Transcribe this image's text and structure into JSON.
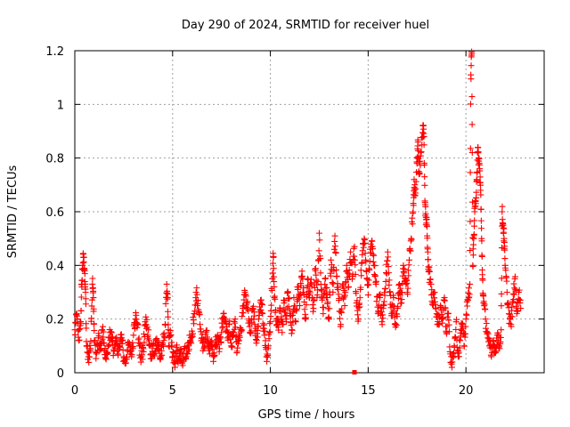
{
  "chart_data": {
    "type": "scatter",
    "title": "Day 290 of 2024, SRMTID for receiver huel",
    "xlabel": "GPS time / hours",
    "ylabel": "SRMTID / TECUs",
    "xlim": [
      0,
      24
    ],
    "ylim": [
      0,
      1.2
    ],
    "x_ticks": [
      "0",
      "5",
      "10",
      "15",
      "20"
    ],
    "y_ticks": [
      "0",
      "0.2",
      "0.4",
      "0.6",
      "0.8",
      "1",
      "1.2"
    ],
    "grid": true,
    "marker": "+",
    "series_color": "#ff0000",
    "series": [
      {
        "name": "SRMTID",
        "points": [
          [
            0.0,
            0.16
          ],
          [
            0.1,
            0.22
          ],
          [
            0.2,
            0.12
          ],
          [
            0.3,
            0.19
          ],
          [
            0.35,
            0.33
          ],
          [
            0.4,
            0.4
          ],
          [
            0.45,
            0.43
          ],
          [
            0.5,
            0.38
          ],
          [
            0.55,
            0.3
          ],
          [
            0.6,
            0.1
          ],
          [
            0.7,
            0.06
          ],
          [
            0.8,
            0.09
          ],
          [
            0.9,
            0.33
          ],
          [
            0.95,
            0.28
          ],
          [
            1.0,
            0.12
          ],
          [
            1.1,
            0.07
          ],
          [
            1.2,
            0.13
          ],
          [
            1.3,
            0.09
          ],
          [
            1.4,
            0.16
          ],
          [
            1.5,
            0.11
          ],
          [
            1.6,
            0.05
          ],
          [
            1.7,
            0.1
          ],
          [
            1.8,
            0.15
          ],
          [
            1.9,
            0.12
          ],
          [
            2.0,
            0.08
          ],
          [
            2.1,
            0.12
          ],
          [
            2.2,
            0.07
          ],
          [
            2.3,
            0.1
          ],
          [
            2.4,
            0.13
          ],
          [
            2.5,
            0.06
          ],
          [
            2.6,
            0.05
          ],
          [
            2.7,
            0.08
          ],
          [
            2.8,
            0.11
          ],
          [
            2.9,
            0.06
          ],
          [
            3.0,
            0.14
          ],
          [
            3.1,
            0.2
          ],
          [
            3.2,
            0.18
          ],
          [
            3.3,
            0.1
          ],
          [
            3.4,
            0.06
          ],
          [
            3.5,
            0.09
          ],
          [
            3.6,
            0.19
          ],
          [
            3.7,
            0.17
          ],
          [
            3.8,
            0.12
          ],
          [
            3.9,
            0.07
          ],
          [
            4.0,
            0.1
          ],
          [
            4.1,
            0.08
          ],
          [
            4.2,
            0.12
          ],
          [
            4.3,
            0.09
          ],
          [
            4.4,
            0.06
          ],
          [
            4.5,
            0.11
          ],
          [
            4.6,
            0.13
          ],
          [
            4.7,
            0.33
          ],
          [
            4.75,
            0.28
          ],
          [
            4.8,
            0.1
          ],
          [
            4.9,
            0.14
          ],
          [
            5.0,
            0.06
          ],
          [
            5.1,
            0.04
          ],
          [
            5.2,
            0.08
          ],
          [
            5.3,
            0.05
          ],
          [
            5.4,
            0.07
          ],
          [
            5.5,
            0.04
          ],
          [
            5.6,
            0.09
          ],
          [
            5.7,
            0.06
          ],
          [
            5.8,
            0.1
          ],
          [
            5.9,
            0.12
          ],
          [
            6.0,
            0.14
          ],
          [
            6.1,
            0.22
          ],
          [
            6.2,
            0.3
          ],
          [
            6.3,
            0.27
          ],
          [
            6.4,
            0.18
          ],
          [
            6.5,
            0.13
          ],
          [
            6.6,
            0.09
          ],
          [
            6.7,
            0.15
          ],
          [
            6.8,
            0.11
          ],
          [
            6.9,
            0.07
          ],
          [
            7.0,
            0.12
          ],
          [
            7.1,
            0.06
          ],
          [
            7.2,
            0.1
          ],
          [
            7.3,
            0.14
          ],
          [
            7.4,
            0.09
          ],
          [
            7.5,
            0.15
          ],
          [
            7.6,
            0.22
          ],
          [
            7.7,
            0.19
          ],
          [
            7.8,
            0.13
          ],
          [
            7.9,
            0.18
          ],
          [
            8.0,
            0.1
          ],
          [
            8.1,
            0.14
          ],
          [
            8.2,
            0.2
          ],
          [
            8.3,
            0.08
          ],
          [
            8.4,
            0.12
          ],
          [
            8.5,
            0.16
          ],
          [
            8.6,
            0.24
          ],
          [
            8.7,
            0.3
          ],
          [
            8.8,
            0.26
          ],
          [
            8.9,
            0.2
          ],
          [
            9.0,
            0.15
          ],
          [
            9.1,
            0.24
          ],
          [
            9.2,
            0.18
          ],
          [
            9.3,
            0.12
          ],
          [
            9.4,
            0.2
          ],
          [
            9.5,
            0.27
          ],
          [
            9.6,
            0.22
          ],
          [
            9.7,
            0.14
          ],
          [
            9.8,
            0.06
          ],
          [
            9.9,
            0.1
          ],
          [
            10.0,
            0.19
          ],
          [
            10.1,
            0.35
          ],
          [
            10.15,
            0.43
          ],
          [
            10.2,
            0.28
          ],
          [
            10.3,
            0.2
          ],
          [
            10.4,
            0.17
          ],
          [
            10.5,
            0.24
          ],
          [
            10.6,
            0.15
          ],
          [
            10.7,
            0.26
          ],
          [
            10.8,
            0.2
          ],
          [
            10.9,
            0.3
          ],
          [
            11.0,
            0.22
          ],
          [
            11.1,
            0.16
          ],
          [
            11.2,
            0.28
          ],
          [
            11.3,
            0.19
          ],
          [
            11.4,
            0.31
          ],
          [
            11.5,
            0.25
          ],
          [
            11.6,
            0.36
          ],
          [
            11.7,
            0.3
          ],
          [
            11.8,
            0.2
          ],
          [
            11.9,
            0.35
          ],
          [
            12.0,
            0.28
          ],
          [
            12.1,
            0.33
          ],
          [
            12.2,
            0.24
          ],
          [
            12.3,
            0.38
          ],
          [
            12.4,
            0.29
          ],
          [
            12.5,
            0.52
          ],
          [
            12.6,
            0.31
          ],
          [
            12.7,
            0.22
          ],
          [
            12.8,
            0.35
          ],
          [
            12.9,
            0.28
          ],
          [
            13.0,
            0.2
          ],
          [
            13.1,
            0.42
          ],
          [
            13.2,
            0.3
          ],
          [
            13.3,
            0.51
          ],
          [
            13.4,
            0.36
          ],
          [
            13.5,
            0.27
          ],
          [
            13.6,
            0.18
          ],
          [
            13.7,
            0.33
          ],
          [
            13.8,
            0.25
          ],
          [
            13.9,
            0.4
          ],
          [
            14.0,
            0.32
          ],
          [
            14.1,
            0.45
          ],
          [
            14.2,
            0.36
          ],
          [
            14.3,
            0.47
          ],
          [
            14.4,
            0.26
          ],
          [
            14.5,
            0.2
          ],
          [
            14.6,
            0.31
          ],
          [
            14.7,
            0.44
          ],
          [
            14.8,
            0.5
          ],
          [
            14.9,
            0.38
          ],
          [
            15.0,
            0.29
          ],
          [
            15.1,
            0.46
          ],
          [
            15.2,
            0.49
          ],
          [
            15.3,
            0.4
          ],
          [
            15.4,
            0.33
          ],
          [
            15.5,
            0.22
          ],
          [
            15.6,
            0.28
          ],
          [
            15.7,
            0.19
          ],
          [
            15.8,
            0.25
          ],
          [
            15.9,
            0.34
          ],
          [
            16.0,
            0.45
          ],
          [
            16.1,
            0.3
          ],
          [
            16.2,
            0.22
          ],
          [
            16.3,
            0.28
          ],
          [
            16.4,
            0.17
          ],
          [
            16.5,
            0.24
          ],
          [
            16.6,
            0.33
          ],
          [
            16.7,
            0.26
          ],
          [
            16.8,
            0.4
          ],
          [
            16.9,
            0.35
          ],
          [
            17.0,
            0.3
          ],
          [
            17.1,
            0.42
          ],
          [
            17.2,
            0.5
          ],
          [
            17.3,
            0.6
          ],
          [
            17.35,
            0.72
          ],
          [
            17.4,
            0.66
          ],
          [
            17.5,
            0.78
          ],
          [
            17.55,
            0.86
          ],
          [
            17.6,
            0.74
          ],
          [
            17.7,
            0.82
          ],
          [
            17.8,
            0.92
          ],
          [
            17.85,
            0.88
          ],
          [
            17.9,
            0.64
          ],
          [
            17.95,
            0.58
          ],
          [
            18.0,
            0.55
          ],
          [
            18.05,
            0.45
          ],
          [
            18.1,
            0.38
          ],
          [
            18.2,
            0.33
          ],
          [
            18.3,
            0.26
          ],
          [
            18.4,
            0.3
          ],
          [
            18.5,
            0.22
          ],
          [
            18.6,
            0.18
          ],
          [
            18.7,
            0.25
          ],
          [
            18.8,
            0.2
          ],
          [
            18.9,
            0.28
          ],
          [
            19.0,
            0.15
          ],
          [
            19.1,
            0.22
          ],
          [
            19.2,
            0.07
          ],
          [
            19.3,
            0.04
          ],
          [
            19.4,
            0.1
          ],
          [
            19.5,
            0.19
          ],
          [
            19.6,
            0.06
          ],
          [
            19.7,
            0.12
          ],
          [
            19.8,
            0.18
          ],
          [
            19.9,
            0.1
          ],
          [
            20.0,
            0.2
          ],
          [
            20.1,
            0.27
          ],
          [
            20.2,
            0.33
          ],
          [
            20.25,
            1.11
          ],
          [
            20.3,
            1.19
          ],
          [
            20.35,
            0.4
          ],
          [
            20.4,
            0.5
          ],
          [
            20.45,
            0.6
          ],
          [
            20.5,
            0.64
          ],
          [
            20.55,
            0.72
          ],
          [
            20.6,
            0.82
          ],
          [
            20.65,
            0.8
          ],
          [
            20.7,
            0.76
          ],
          [
            20.75,
            0.68
          ],
          [
            20.8,
            0.5
          ],
          [
            20.85,
            0.35
          ],
          [
            20.9,
            0.26
          ],
          [
            21.0,
            0.2
          ],
          [
            21.1,
            0.15
          ],
          [
            21.2,
            0.1
          ],
          [
            21.3,
            0.06
          ],
          [
            21.4,
            0.12
          ],
          [
            21.5,
            0.08
          ],
          [
            21.6,
            0.14
          ],
          [
            21.7,
            0.1
          ],
          [
            21.8,
            0.16
          ],
          [
            21.85,
            0.6
          ],
          [
            21.9,
            0.55
          ],
          [
            21.95,
            0.5
          ],
          [
            22.0,
            0.4
          ],
          [
            22.1,
            0.3
          ],
          [
            22.2,
            0.22
          ],
          [
            22.3,
            0.18
          ],
          [
            22.4,
            0.26
          ],
          [
            22.5,
            0.35
          ],
          [
            22.6,
            0.22
          ],
          [
            22.7,
            0.3
          ],
          [
            22.8,
            0.24
          ]
        ]
      }
    ],
    "outliers": [
      [
        14.3,
        0.0
      ]
    ]
  }
}
